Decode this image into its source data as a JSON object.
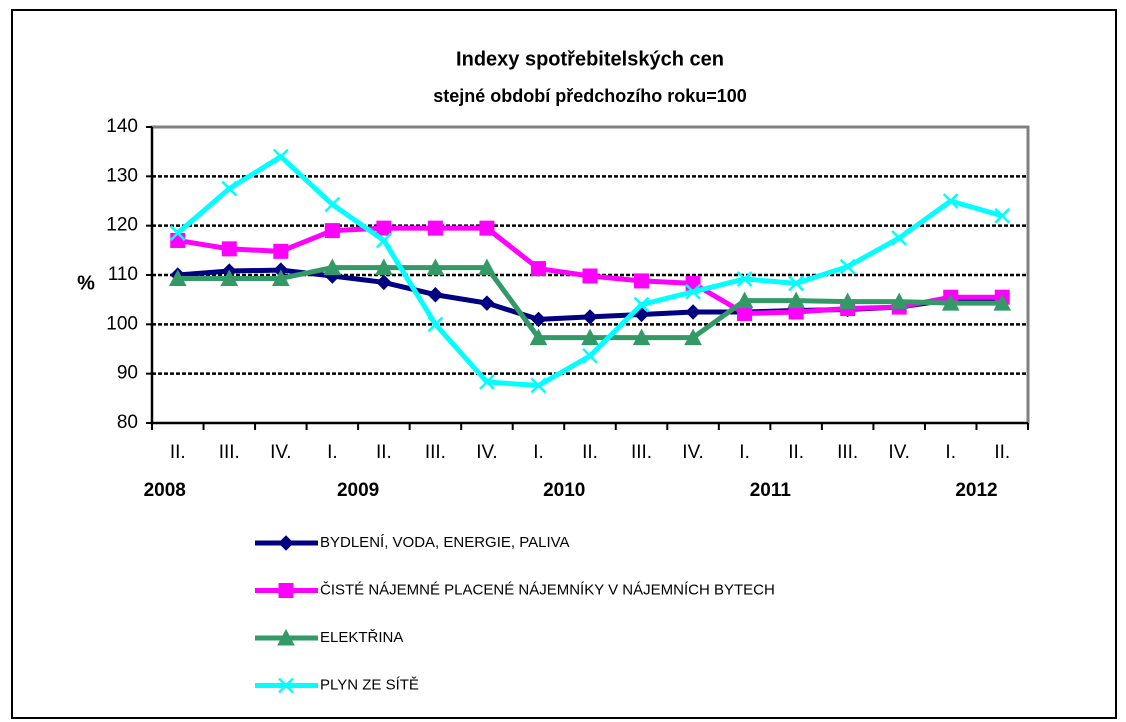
{
  "chart_data": {
    "type": "line",
    "title": "Indexy spotřebitelských  cen",
    "subtitle": "stejné období předchozího roku=100",
    "ylabel": "%",
    "categories": [
      "II.",
      "III.",
      "IV.",
      "I.",
      "II.",
      "III.",
      "IV.",
      "I.",
      "II.",
      "III.",
      "IV.",
      "I.",
      "II.",
      "III.",
      "IV.",
      "I.",
      "II."
    ],
    "year_labels": [
      "2008",
      null,
      null,
      "2009",
      null,
      null,
      null,
      "2010",
      null,
      null,
      null,
      "2011",
      null,
      null,
      null,
      "2012",
      null
    ],
    "ylim": [
      80,
      140
    ],
    "yticks": [
      80,
      90,
      100,
      110,
      120,
      130,
      140
    ],
    "grid": true,
    "series": [
      {
        "name": "BYDLENÍ, VODA, ENERGIE, PALIVA",
        "color": "#000080",
        "marker": "diamond",
        "values": [
          110,
          110.8,
          111,
          109.8,
          108.5,
          106,
          104.3,
          101,
          101.5,
          102,
          102.5,
          102.5,
          102.8,
          103,
          103.5,
          105,
          105
        ]
      },
      {
        "name": "ČISTÉ NÁJEMNÉ PLACENÉ NÁJEMNÍKY V NÁJEMNÍCH BYTECH",
        "color": "#ff00ff",
        "marker": "square",
        "values": [
          117,
          115.3,
          114.8,
          119,
          119.5,
          119.5,
          119.5,
          111.3,
          109.8,
          108.8,
          108.3,
          102.2,
          102.5,
          103.2,
          103.5,
          105.5,
          105.5
        ]
      },
      {
        "name": "ELEKTŘINA",
        "color": "#339966",
        "marker": "triangle",
        "values": [
          109.3,
          109.3,
          109.3,
          111.5,
          111.5,
          111.5,
          111.5,
          97.3,
          97.3,
          97.3,
          97.3,
          104.8,
          104.8,
          104.6,
          104.6,
          104.3,
          104.3
        ]
      },
      {
        "name": "PLYN ZE SÍTĚ",
        "color": "#00ffff",
        "marker": "x",
        "values": [
          118.5,
          127.5,
          134,
          124.3,
          117,
          100,
          88.3,
          87.6,
          93.6,
          104,
          106.6,
          109.2,
          108.3,
          111.7,
          117.5,
          125,
          122
        ]
      }
    ]
  }
}
